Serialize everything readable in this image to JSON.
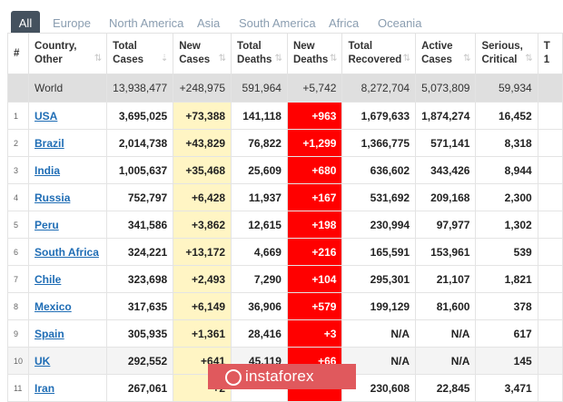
{
  "tabs": [
    "All",
    "Europe",
    "North America",
    "Asia",
    "South America",
    "Africa",
    "Oceania"
  ],
  "headers": {
    "idx": "#",
    "country": [
      "Country,",
      "Other"
    ],
    "total_cases": [
      "Total",
      "Cases"
    ],
    "new_cases": [
      "New",
      "Cases"
    ],
    "total_deaths": [
      "Total",
      "Deaths"
    ],
    "new_deaths": [
      "New",
      "Deaths"
    ],
    "total_recovered": [
      "Total",
      "Recovered"
    ],
    "active_cases": [
      "Active",
      "Cases"
    ],
    "serious_critical": [
      "Serious,",
      "Critical"
    ],
    "extra": [
      "T",
      "1"
    ]
  },
  "world": {
    "country": "World",
    "total_cases": "13,938,477",
    "new_cases": "+248,975",
    "total_deaths": "591,964",
    "new_deaths": "+5,742",
    "total_recovered": "8,272,704",
    "active_cases": "5,073,809",
    "serious_critical": "59,934"
  },
  "rows": [
    {
      "idx": "1",
      "country": "USA",
      "total_cases": "3,695,025",
      "new_cases": "+73,388",
      "total_deaths": "141,118",
      "new_deaths": "+963",
      "total_recovered": "1,679,633",
      "active_cases": "1,874,274",
      "serious_critical": "16,452"
    },
    {
      "idx": "2",
      "country": "Brazil",
      "total_cases": "2,014,738",
      "new_cases": "+43,829",
      "total_deaths": "76,822",
      "new_deaths": "+1,299",
      "total_recovered": "1,366,775",
      "active_cases": "571,141",
      "serious_critical": "8,318"
    },
    {
      "idx": "3",
      "country": "India",
      "total_cases": "1,005,637",
      "new_cases": "+35,468",
      "total_deaths": "25,609",
      "new_deaths": "+680",
      "total_recovered": "636,602",
      "active_cases": "343,426",
      "serious_critical": "8,944"
    },
    {
      "idx": "4",
      "country": "Russia",
      "total_cases": "752,797",
      "new_cases": "+6,428",
      "total_deaths": "11,937",
      "new_deaths": "+167",
      "total_recovered": "531,692",
      "active_cases": "209,168",
      "serious_critical": "2,300"
    },
    {
      "idx": "5",
      "country": "Peru",
      "total_cases": "341,586",
      "new_cases": "+3,862",
      "total_deaths": "12,615",
      "new_deaths": "+198",
      "total_recovered": "230,994",
      "active_cases": "97,977",
      "serious_critical": "1,302"
    },
    {
      "idx": "6",
      "country": "South Africa",
      "total_cases": "324,221",
      "new_cases": "+13,172",
      "total_deaths": "4,669",
      "new_deaths": "+216",
      "total_recovered": "165,591",
      "active_cases": "153,961",
      "serious_critical": "539"
    },
    {
      "idx": "7",
      "country": "Chile",
      "total_cases": "323,698",
      "new_cases": "+2,493",
      "total_deaths": "7,290",
      "new_deaths": "+104",
      "total_recovered": "295,301",
      "active_cases": "21,107",
      "serious_critical": "1,821"
    },
    {
      "idx": "8",
      "country": "Mexico",
      "total_cases": "317,635",
      "new_cases": "+6,149",
      "total_deaths": "36,906",
      "new_deaths": "+579",
      "total_recovered": "199,129",
      "active_cases": "81,600",
      "serious_critical": "378"
    },
    {
      "idx": "9",
      "country": "Spain",
      "total_cases": "305,935",
      "new_cases": "+1,361",
      "total_deaths": "28,416",
      "new_deaths": "+3",
      "total_recovered": "N/A",
      "active_cases": "N/A",
      "serious_critical": "617"
    },
    {
      "idx": "10",
      "country": "UK",
      "total_cases": "292,552",
      "new_cases": "+641",
      "total_deaths": "45,119",
      "new_deaths": "+66",
      "total_recovered": "N/A",
      "active_cases": "N/A",
      "serious_critical": "145"
    },
    {
      "idx": "11",
      "country": "Iran",
      "total_cases": "267,061",
      "new_cases": "+2",
      "total_deaths": "",
      "new_deaths": "",
      "total_recovered": "230,608",
      "active_cases": "22,845",
      "serious_critical": "3,471"
    }
  ],
  "watermark": "instaforex",
  "colors": {
    "new_deaths_bg": "#ff0000",
    "new_cases_bg": "#fff5c4",
    "world_bg": "#dfdfdf",
    "link": "#1f6db5",
    "tab_active": "#44515e"
  }
}
